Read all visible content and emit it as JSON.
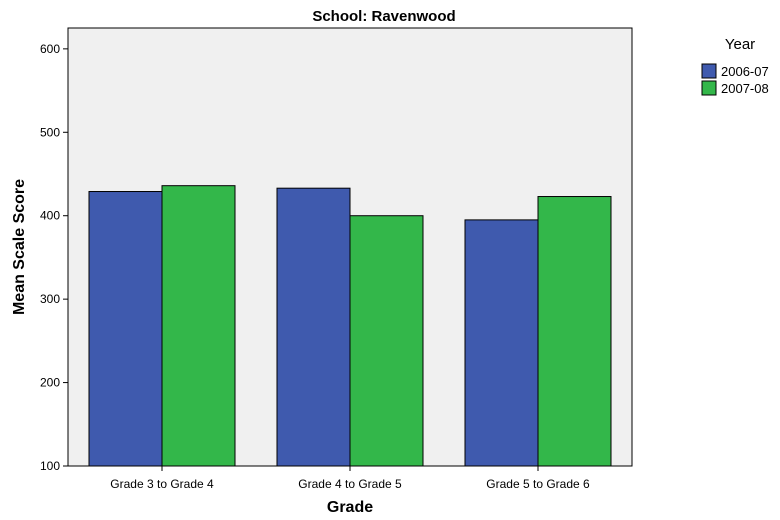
{
  "chart_data": {
    "type": "bar",
    "title": "School: Ravenwood",
    "xlabel": "Grade",
    "ylabel": "Mean Scale Score",
    "categories": [
      "Grade 3 to Grade 4",
      "Grade 4 to Grade 5",
      "Grade 5 to Grade 6"
    ],
    "series": [
      {
        "name": "2006-07",
        "color": "#3F5AAE",
        "values": [
          429,
          433,
          395
        ]
      },
      {
        "name": "2007-08",
        "color": "#33B74A",
        "values": [
          436,
          400,
          423
        ]
      }
    ],
    "ylim": [
      100,
      625
    ],
    "yticks": [
      100,
      200,
      300,
      400,
      500,
      600
    ],
    "legend": {
      "title": "Year",
      "placement": "right"
    },
    "plot_background": "#F0F0F0",
    "grid": false
  }
}
